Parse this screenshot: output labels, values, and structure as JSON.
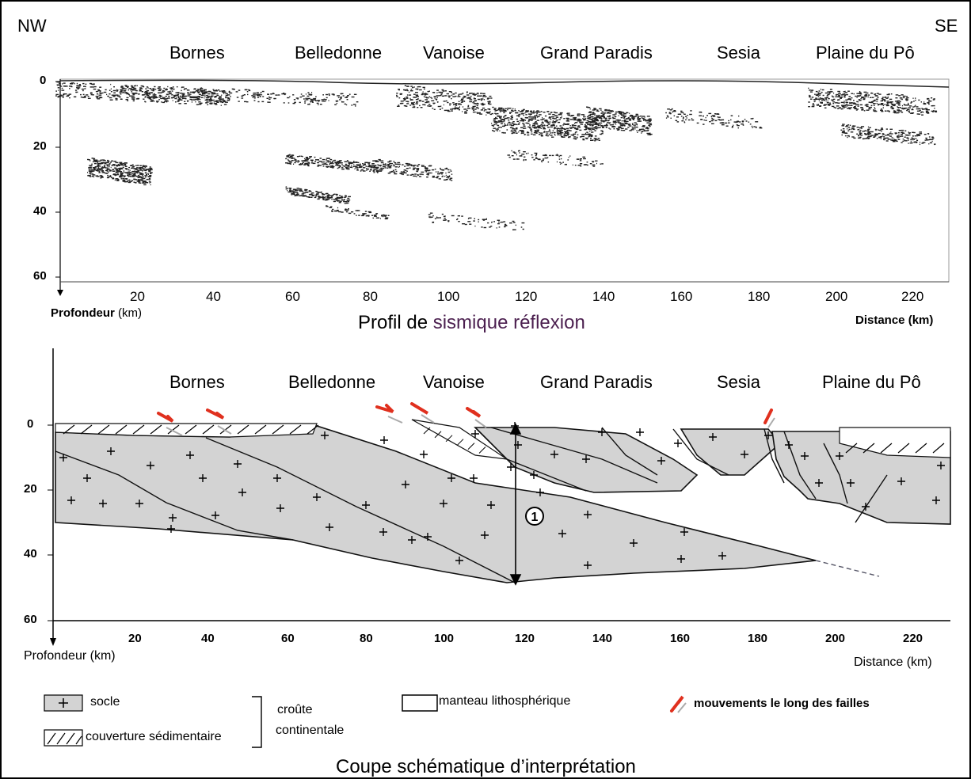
{
  "corners": {
    "left": "NW",
    "right": "SE"
  },
  "regions": [
    "Bornes",
    "Belledonne",
    "Vanoise",
    "Grand Paradis",
    "Sesia",
    "Plaine du Pô"
  ],
  "seismic": {
    "caption_a": "Profil de ",
    "caption_b": "sismique réflexion",
    "caption_b_color": "#4b1f4f",
    "depth_label_bold": "Profondeur",
    "depth_label_unit": " (km)",
    "distance_label_bold": "Distance",
    "distance_label_unit": " (km)",
    "y_ticks": [
      "0",
      "20",
      "40",
      "60"
    ],
    "x_ticks": [
      "20",
      "40",
      "60",
      "80",
      "100",
      "120",
      "140",
      "160",
      "180",
      "200",
      "220"
    ]
  },
  "section": {
    "caption": "Coupe schématique d’interprétation",
    "depth_label": "Profondeur (km)",
    "distance_label": "Distance (km)",
    "y_ticks": [
      "0",
      "20",
      "40",
      "60"
    ],
    "x_ticks": [
      "20",
      "40",
      "60",
      "80",
      "100",
      "120",
      "140",
      "160",
      "180",
      "200",
      "220"
    ],
    "marker": "1",
    "fill_color": "#d3d3d3"
  },
  "legend": {
    "socle": "socle",
    "couverture": "couverture sédimentaire",
    "croute_1": "croûte",
    "croute_2": "continentale",
    "manteau": "manteau lithosphérique",
    "failles": "mouvements le long des failles",
    "fault_color": "#e0301e"
  }
}
